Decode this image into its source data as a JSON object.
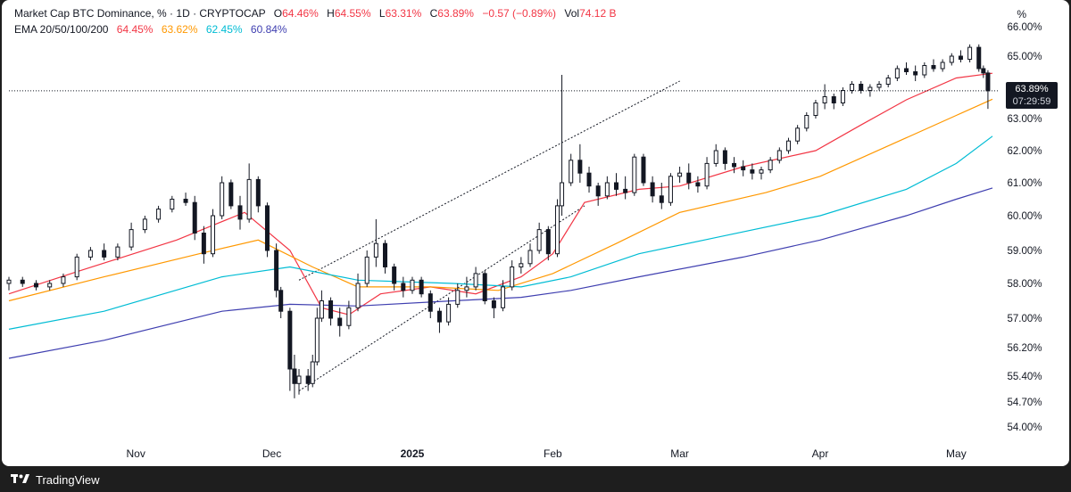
{
  "legend": {
    "symbol": "Market Cap BTC Dominance, % · 1D · CRYPTOCAP",
    "open_label": "O",
    "open": "64.46%",
    "high_label": "H",
    "high": "64.55%",
    "low_label": "L",
    "low": "63.31%",
    "close_label": "C",
    "close": "63.89%",
    "change": "−0.57 (−0.89%)",
    "vol_label": "Vol",
    "vol": "74.12 B",
    "ema_title": "EMA 20/50/100/200",
    "ema_values": [
      "64.45%",
      "63.62%",
      "62.45%",
      "60.84%"
    ]
  },
  "axis_unit": "%",
  "price_tag": {
    "price": "63.89%",
    "countdown": "07:29:59"
  },
  "footer": {
    "brand": "TradingView"
  },
  "colors": {
    "up": "#089981",
    "down": "#f23645",
    "ema20": "#f23645",
    "ema50": "#ff9800",
    "ema100": "#00bcd4",
    "ema200": "#3f3fb0"
  },
  "chart_data": {
    "type": "candlestick",
    "title": "Market Cap BTC Dominance, %",
    "interval": "1D",
    "y_unit": "%",
    "y_ticks": [
      54.0,
      54.7,
      55.4,
      56.2,
      57.0,
      58.0,
      59.0,
      60.0,
      61.0,
      62.0,
      63.0,
      65.0,
      66.0
    ],
    "y_tick_labels": [
      "54.00%",
      "54.70%",
      "55.40%",
      "56.20%",
      "57.00%",
      "58.00%",
      "59.00%",
      "60.00%",
      "61.00%",
      "62.00%",
      "63.00%",
      "65.00%",
      "66.00%"
    ],
    "x_tick_labels": [
      "Nov",
      "Dec",
      "2025",
      "Feb",
      "Mar",
      "Apr",
      "May"
    ],
    "x_tick_dates": [
      "2024-11-01",
      "2024-12-01",
      "2025-01-01",
      "2025-02-01",
      "2025-03-01",
      "2025-04-01",
      "2025-05-01"
    ],
    "x_range": [
      "2024-10-04",
      "2025-05-09"
    ],
    "current_price": 63.89,
    "series": [
      {
        "name": "EMA 20",
        "color": "#f23645",
        "points": [
          [
            "2024-10-04",
            57.7
          ],
          [
            "2024-10-20",
            58.4
          ],
          [
            "2024-11-10",
            59.3
          ],
          [
            "2024-11-25",
            60.1
          ],
          [
            "2024-12-05",
            59.0
          ],
          [
            "2024-12-12",
            57.3
          ],
          [
            "2024-12-18",
            57.1
          ],
          [
            "2024-12-25",
            57.7
          ],
          [
            "2025-01-05",
            57.9
          ],
          [
            "2025-01-15",
            57.7
          ],
          [
            "2025-01-25",
            58.2
          ],
          [
            "2025-02-01",
            58.9
          ],
          [
            "2025-02-08",
            60.4
          ],
          [
            "2025-02-20",
            60.8
          ],
          [
            "2025-03-01",
            60.9
          ],
          [
            "2025-03-15",
            61.5
          ],
          [
            "2025-03-31",
            62.0
          ],
          [
            "2025-04-10",
            62.8
          ],
          [
            "2025-04-20",
            63.6
          ],
          [
            "2025-05-01",
            64.3
          ],
          [
            "2025-05-09",
            64.45
          ]
        ]
      },
      {
        "name": "EMA 50",
        "color": "#ff9800",
        "points": [
          [
            "2024-10-04",
            57.5
          ],
          [
            "2024-10-25",
            58.2
          ],
          [
            "2024-11-15",
            58.9
          ],
          [
            "2024-11-28",
            59.3
          ],
          [
            "2024-12-10",
            58.5
          ],
          [
            "2024-12-20",
            57.9
          ],
          [
            "2025-01-05",
            57.9
          ],
          [
            "2025-01-20",
            57.8
          ],
          [
            "2025-02-01",
            58.3
          ],
          [
            "2025-02-15",
            59.2
          ],
          [
            "2025-03-01",
            60.1
          ],
          [
            "2025-03-20",
            60.7
          ],
          [
            "2025-04-01",
            61.2
          ],
          [
            "2025-04-20",
            62.4
          ],
          [
            "2025-05-01",
            63.1
          ],
          [
            "2025-05-09",
            63.62
          ]
        ]
      },
      {
        "name": "EMA 100",
        "color": "#00bcd4",
        "points": [
          [
            "2024-10-04",
            56.7
          ],
          [
            "2024-10-25",
            57.2
          ],
          [
            "2024-11-20",
            58.2
          ],
          [
            "2024-12-05",
            58.5
          ],
          [
            "2024-12-20",
            58.1
          ],
          [
            "2025-01-10",
            58.0
          ],
          [
            "2025-01-25",
            57.9
          ],
          [
            "2025-02-05",
            58.2
          ],
          [
            "2025-02-20",
            58.9
          ],
          [
            "2025-03-10",
            59.4
          ],
          [
            "2025-04-01",
            60.0
          ],
          [
            "2025-04-20",
            60.8
          ],
          [
            "2025-05-01",
            61.6
          ],
          [
            "2025-05-09",
            62.45
          ]
        ]
      },
      {
        "name": "EMA 200",
        "color": "#3f3fb0",
        "points": [
          [
            "2024-10-04",
            55.9
          ],
          [
            "2024-10-25",
            56.4
          ],
          [
            "2024-11-20",
            57.2
          ],
          [
            "2024-12-05",
            57.4
          ],
          [
            "2024-12-20",
            57.35
          ],
          [
            "2025-01-10",
            57.5
          ],
          [
            "2025-01-25",
            57.6
          ],
          [
            "2025-02-05",
            57.8
          ],
          [
            "2025-02-20",
            58.2
          ],
          [
            "2025-03-15",
            58.8
          ],
          [
            "2025-04-01",
            59.3
          ],
          [
            "2025-04-20",
            60.0
          ],
          [
            "2025-05-01",
            60.5
          ],
          [
            "2025-05-09",
            60.84
          ]
        ]
      }
    ],
    "candles": [
      [
        "2024-10-04",
        58.0,
        58.2,
        57.8,
        58.1
      ],
      [
        "2024-10-07",
        58.1,
        58.2,
        57.9,
        58.0
      ],
      [
        "2024-10-10",
        58.0,
        58.1,
        57.8,
        57.9
      ],
      [
        "2024-10-13",
        57.9,
        58.1,
        57.8,
        58.0
      ],
      [
        "2024-10-16",
        58.0,
        58.3,
        57.9,
        58.2
      ],
      [
        "2024-10-19",
        58.2,
        58.9,
        58.1,
        58.8
      ],
      [
        "2024-10-22",
        58.8,
        59.1,
        58.7,
        59.0
      ],
      [
        "2024-10-25",
        59.0,
        59.2,
        58.7,
        58.8
      ],
      [
        "2024-10-28",
        58.8,
        59.2,
        58.7,
        59.1
      ],
      [
        "2024-10-31",
        59.1,
        59.8,
        59.0,
        59.6
      ],
      [
        "2024-11-03",
        59.6,
        60.0,
        59.5,
        59.9
      ],
      [
        "2024-11-06",
        59.9,
        60.3,
        59.8,
        60.2
      ],
      [
        "2024-11-09",
        60.2,
        60.6,
        60.1,
        60.5
      ],
      [
        "2024-11-12",
        60.5,
        60.7,
        60.3,
        60.4
      ],
      [
        "2024-11-14",
        60.4,
        60.6,
        59.3,
        59.5
      ],
      [
        "2024-11-16",
        59.5,
        59.7,
        58.6,
        58.9
      ],
      [
        "2024-11-18",
        58.9,
        60.2,
        58.8,
        60.0
      ],
      [
        "2024-11-20",
        60.0,
        61.2,
        59.9,
        61.0
      ],
      [
        "2024-11-22",
        61.0,
        61.1,
        60.2,
        60.3
      ],
      [
        "2024-11-24",
        60.3,
        60.6,
        59.6,
        59.9
      ],
      [
        "2024-11-26",
        59.9,
        61.6,
        59.8,
        61.1
      ],
      [
        "2024-11-28",
        61.1,
        61.2,
        60.1,
        60.3
      ],
      [
        "2024-11-30",
        60.3,
        60.4,
        58.8,
        59.0
      ],
      [
        "2024-12-02",
        59.0,
        59.2,
        57.6,
        57.8
      ],
      [
        "2024-12-03",
        57.8,
        57.9,
        57.0,
        57.2
      ],
      [
        "2024-12-05",
        57.2,
        57.3,
        55.0,
        55.6
      ],
      [
        "2024-12-06",
        55.6,
        56.0,
        54.8,
        55.2
      ],
      [
        "2024-12-07",
        55.2,
        55.6,
        54.9,
        55.4
      ],
      [
        "2024-12-09",
        55.4,
        55.6,
        55.0,
        55.2
      ],
      [
        "2024-12-10",
        55.2,
        56.0,
        55.1,
        55.8
      ],
      [
        "2024-12-11",
        55.8,
        57.3,
        55.7,
        57.0
      ],
      [
        "2024-12-12",
        57.0,
        57.8,
        56.9,
        57.5
      ],
      [
        "2024-12-14",
        57.5,
        57.6,
        56.8,
        57.0
      ],
      [
        "2024-12-16",
        57.0,
        57.3,
        56.5,
        56.8
      ],
      [
        "2024-12-18",
        56.8,
        57.5,
        56.7,
        57.3
      ],
      [
        "2024-12-20",
        57.3,
        58.3,
        57.2,
        58.0
      ],
      [
        "2024-12-22",
        58.0,
        59.0,
        57.9,
        58.8
      ],
      [
        "2024-12-24",
        58.8,
        59.9,
        58.5,
        59.2
      ],
      [
        "2024-12-26",
        59.2,
        59.3,
        58.3,
        58.5
      ],
      [
        "2024-12-28",
        58.5,
        58.6,
        57.8,
        58.0
      ],
      [
        "2024-12-30",
        58.0,
        58.2,
        57.6,
        57.8
      ],
      [
        "2025-01-01",
        57.8,
        58.2,
        57.7,
        58.1
      ],
      [
        "2025-01-03",
        58.1,
        58.2,
        57.6,
        57.7
      ],
      [
        "2025-01-05",
        57.7,
        57.8,
        57.0,
        57.2
      ],
      [
        "2025-01-07",
        57.2,
        57.3,
        56.6,
        56.9
      ],
      [
        "2025-01-09",
        56.9,
        57.6,
        56.8,
        57.4
      ],
      [
        "2025-01-11",
        57.4,
        58.0,
        57.3,
        57.8
      ],
      [
        "2025-01-13",
        57.8,
        58.2,
        57.6,
        57.9
      ],
      [
        "2025-01-15",
        57.9,
        58.5,
        57.8,
        58.3
      ],
      [
        "2025-01-17",
        58.3,
        58.4,
        57.4,
        57.5
      ],
      [
        "2025-01-19",
        57.5,
        57.6,
        57.0,
        57.3
      ],
      [
        "2025-01-21",
        57.3,
        58.1,
        57.2,
        57.9
      ],
      [
        "2025-01-23",
        57.9,
        58.7,
        57.8,
        58.5
      ],
      [
        "2025-01-25",
        58.5,
        58.8,
        58.3,
        58.6
      ],
      [
        "2025-01-27",
        58.6,
        59.2,
        58.5,
        59.0
      ],
      [
        "2025-01-29",
        59.0,
        59.8,
        58.9,
        59.6
      ],
      [
        "2025-01-31",
        59.6,
        59.7,
        58.7,
        58.9
      ],
      [
        "2025-02-02",
        58.9,
        60.5,
        58.8,
        60.3
      ],
      [
        "2025-02-03",
        60.3,
        64.4,
        60.0,
        61.0
      ],
      [
        "2025-02-05",
        61.0,
        61.9,
        60.9,
        61.7
      ],
      [
        "2025-02-07",
        61.7,
        62.2,
        61.0,
        61.3
      ],
      [
        "2025-02-09",
        61.3,
        61.5,
        60.7,
        60.9
      ],
      [
        "2025-02-11",
        60.9,
        61.0,
        60.3,
        60.6
      ],
      [
        "2025-02-13",
        60.6,
        61.2,
        60.5,
        61.0
      ],
      [
        "2025-02-15",
        61.0,
        61.3,
        60.6,
        60.8
      ],
      [
        "2025-02-17",
        60.8,
        61.2,
        60.5,
        60.7
      ],
      [
        "2025-02-19",
        60.7,
        61.9,
        60.6,
        61.8
      ],
      [
        "2025-02-21",
        61.8,
        61.9,
        60.9,
        61.0
      ],
      [
        "2025-02-23",
        61.0,
        61.2,
        60.4,
        60.6
      ],
      [
        "2025-02-25",
        60.6,
        61.0,
        60.2,
        60.4
      ],
      [
        "2025-02-27",
        60.4,
        61.3,
        60.3,
        61.2
      ],
      [
        "2025-03-01",
        61.2,
        61.5,
        61.0,
        61.3
      ],
      [
        "2025-03-03",
        61.3,
        61.6,
        60.8,
        61.0
      ],
      [
        "2025-03-05",
        61.0,
        61.2,
        60.7,
        60.9
      ],
      [
        "2025-03-07",
        60.9,
        61.8,
        60.8,
        61.6
      ],
      [
        "2025-03-09",
        61.6,
        62.2,
        61.5,
        62.0
      ],
      [
        "2025-03-11",
        62.0,
        62.1,
        61.4,
        61.6
      ],
      [
        "2025-03-13",
        61.6,
        61.8,
        61.3,
        61.5
      ],
      [
        "2025-03-15",
        61.5,
        61.7,
        61.2,
        61.4
      ],
      [
        "2025-03-17",
        61.4,
        61.6,
        61.1,
        61.3
      ],
      [
        "2025-03-19",
        61.3,
        61.5,
        61.1,
        61.4
      ],
      [
        "2025-03-21",
        61.4,
        61.8,
        61.3,
        61.7
      ],
      [
        "2025-03-23",
        61.7,
        62.1,
        61.6,
        62.0
      ],
      [
        "2025-03-25",
        62.0,
        62.4,
        61.9,
        62.3
      ],
      [
        "2025-03-27",
        62.3,
        62.8,
        62.2,
        62.7
      ],
      [
        "2025-03-29",
        62.7,
        63.2,
        62.6,
        63.1
      ],
      [
        "2025-03-31",
        63.1,
        63.6,
        63.0,
        63.5
      ],
      [
        "2025-04-02",
        63.5,
        64.1,
        63.3,
        63.7
      ],
      [
        "2025-04-04",
        63.7,
        63.8,
        63.3,
        63.5
      ],
      [
        "2025-04-06",
        63.5,
        64.0,
        63.4,
        63.9
      ],
      [
        "2025-04-08",
        63.9,
        64.2,
        63.8,
        64.1
      ],
      [
        "2025-04-10",
        64.1,
        64.2,
        63.8,
        63.9
      ],
      [
        "2025-04-12",
        63.9,
        64.1,
        63.7,
        64.0
      ],
      [
        "2025-04-14",
        64.0,
        64.2,
        63.9,
        64.1
      ],
      [
        "2025-04-16",
        64.1,
        64.4,
        64.0,
        64.3
      ],
      [
        "2025-04-18",
        64.3,
        64.7,
        64.2,
        64.6
      ],
      [
        "2025-04-20",
        64.6,
        64.8,
        64.4,
        64.5
      ],
      [
        "2025-04-22",
        64.5,
        64.7,
        64.2,
        64.4
      ],
      [
        "2025-04-24",
        64.4,
        64.8,
        64.3,
        64.7
      ],
      [
        "2025-04-26",
        64.7,
        64.9,
        64.5,
        64.6
      ],
      [
        "2025-04-28",
        64.6,
        64.9,
        64.5,
        64.8
      ],
      [
        "2025-04-30",
        64.8,
        65.1,
        64.7,
        65.0
      ],
      [
        "2025-05-02",
        65.0,
        65.2,
        64.8,
        64.9
      ],
      [
        "2025-05-04",
        64.9,
        65.4,
        64.8,
        65.3
      ],
      [
        "2025-05-06",
        65.3,
        65.4,
        64.5,
        64.6
      ],
      [
        "2025-05-07",
        64.6,
        64.7,
        64.3,
        64.46
      ],
      [
        "2025-05-08",
        64.46,
        64.55,
        63.31,
        63.89
      ]
    ]
  }
}
